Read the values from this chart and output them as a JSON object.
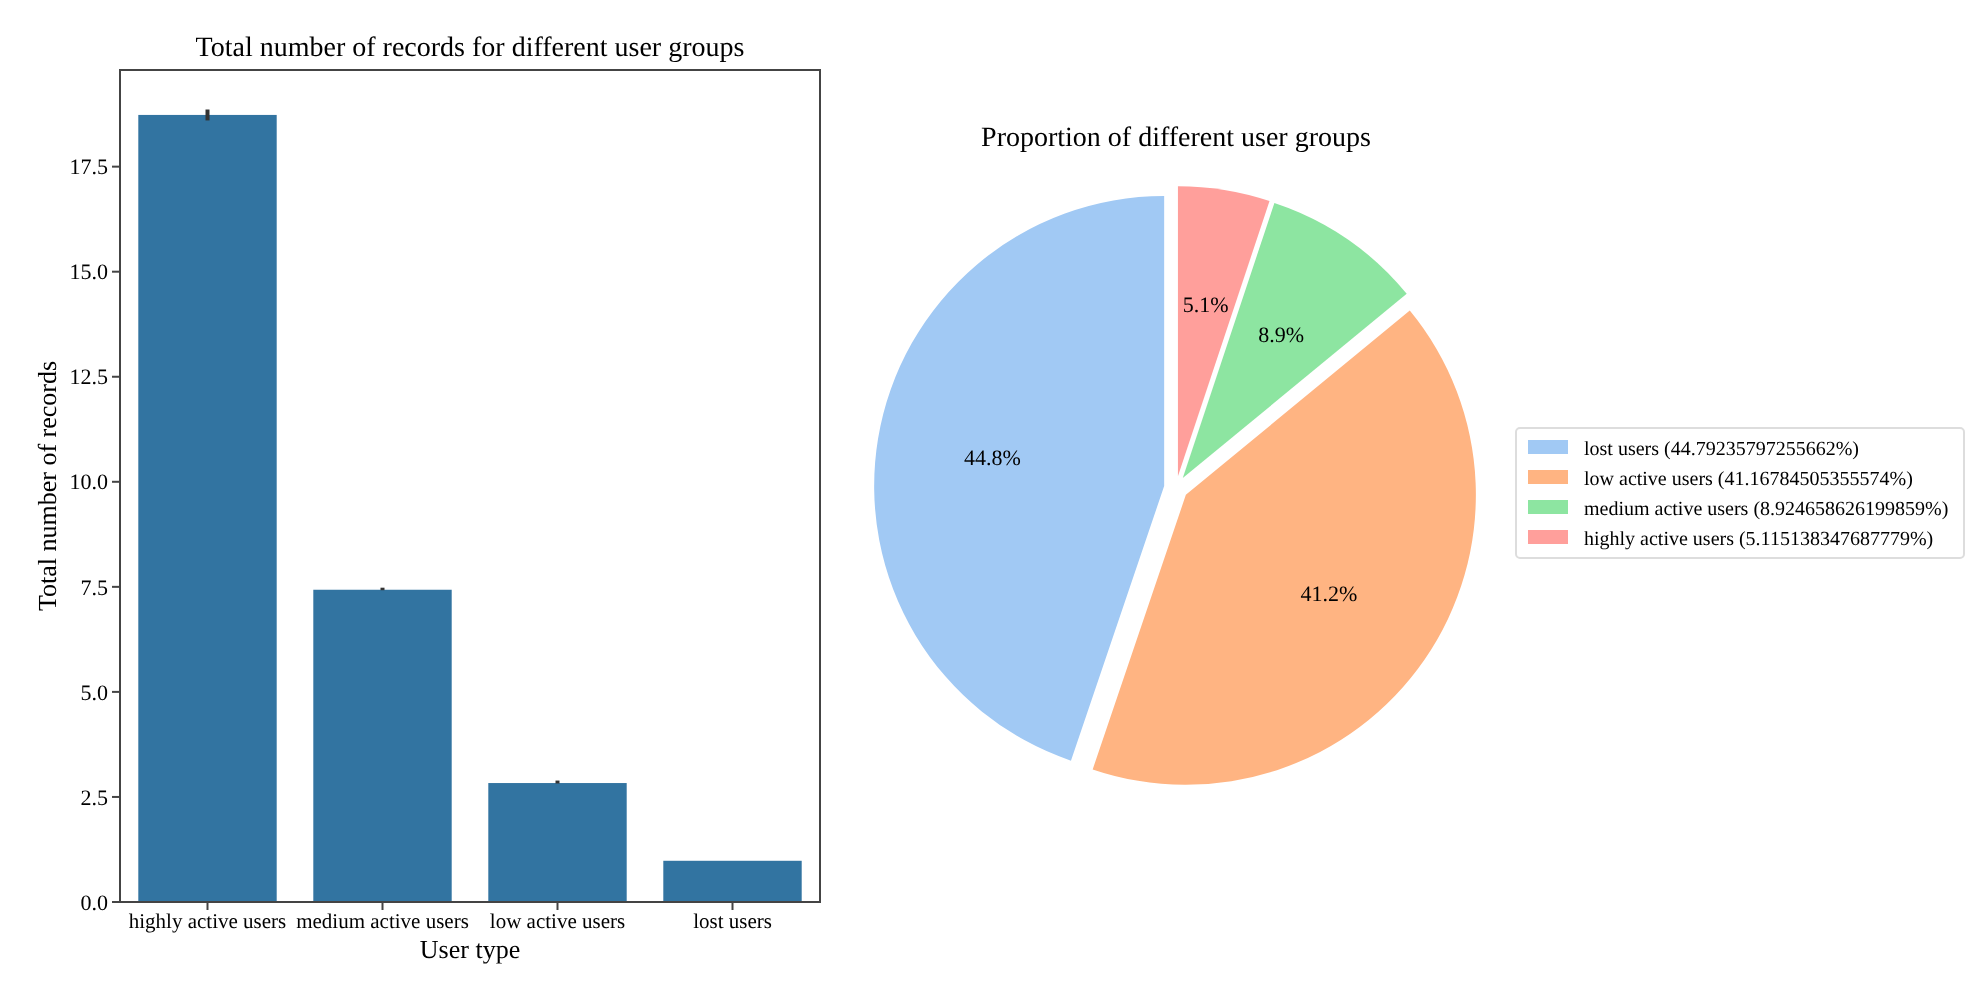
{
  "chart_data": [
    {
      "type": "bar",
      "title": "Total number of records for different user groups",
      "xlabel": "User type",
      "ylabel": "Total number of records",
      "categories": [
        "highly active users",
        "medium active users",
        "low active users",
        "lost users"
      ],
      "values": [
        18.75,
        7.45,
        2.85,
        1.0
      ],
      "color": "#3274a1",
      "errors": [
        [
          18.6,
          18.86
        ],
        [
          7.42,
          7.48
        ],
        [
          2.82,
          2.89
        ],
        null
      ],
      "ylim": [
        0,
        19.8
      ],
      "yticks": [
        {
          "value": 0,
          "label": "0.0"
        },
        {
          "value": 2.5,
          "label": "2.5"
        },
        {
          "value": 5,
          "label": "5.0"
        },
        {
          "value": 7.5,
          "label": "7.5"
        },
        {
          "value": 10,
          "label": "10.0"
        },
        {
          "value": 12.5,
          "label": "12.5"
        },
        {
          "value": 15,
          "label": "15.0"
        },
        {
          "value": 17.5,
          "label": "17.5"
        }
      ],
      "grid": false
    },
    {
      "type": "pie",
      "title": "Proportion of different user groups",
      "categories": [
        "lost users (44.79235797255662%)",
        "low active users (41.16784505355574%)",
        "medium active users (8.924658626199859%)",
        "highly active users (5.115138347687779%)"
      ],
      "values": [
        44.79235797255662,
        41.16784505355574,
        8.924658626199859,
        5.115138347687779
      ],
      "value_labels": [
        "44.8%",
        "41.2%",
        "8.9%",
        "5.1%"
      ],
      "colors": [
        "#a1c9f4",
        "#ffb482",
        "#8de5a1",
        "#ff9f9b"
      ],
      "legend": "right"
    }
  ]
}
